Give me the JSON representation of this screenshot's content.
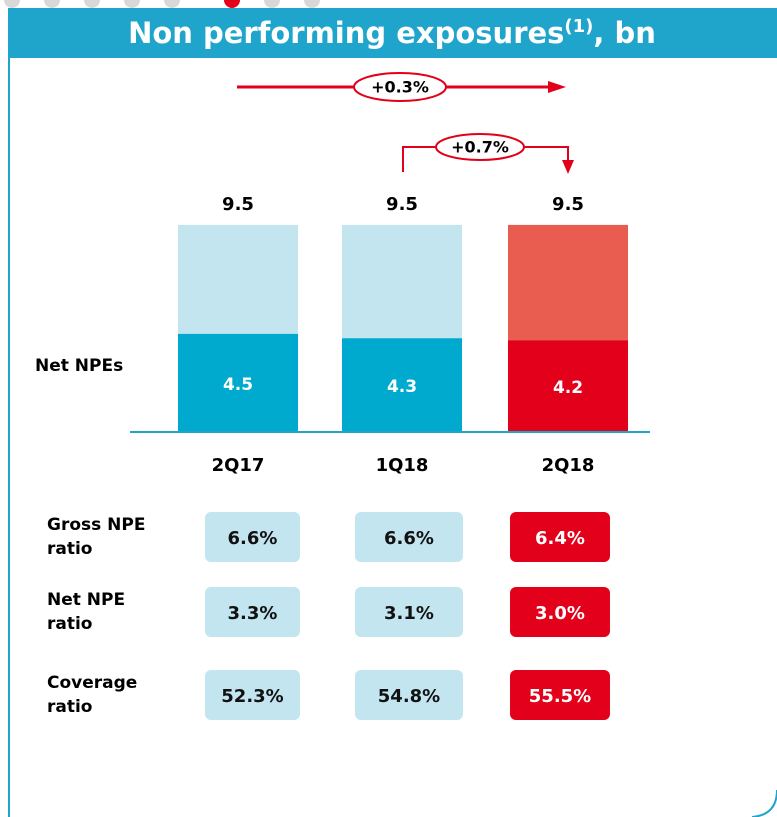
{
  "chart_data": {
    "type": "bar",
    "title": "Non performing exposures",
    "title_note": "(1)",
    "title_suffix": ", bn",
    "categories": [
      "2Q17",
      "1Q18",
      "2Q18"
    ],
    "totals": [
      9.5,
      9.5,
      9.5
    ],
    "total_colors": [
      "#c2e5ef",
      "#c2e5ef",
      "#e85d50"
    ],
    "series": [
      {
        "name": "Net NPEs",
        "values": [
          4.5,
          4.3,
          4.2
        ],
        "colors": [
          "#00a9ce",
          "#00a9ce",
          "#e2001a"
        ]
      }
    ],
    "annotations": [
      "+0.3%",
      "+0.7%"
    ],
    "table": {
      "rows": [
        {
          "label": "Gross NPE ratio",
          "cells": [
            "6.6%",
            "6.6%",
            "6.4%"
          ]
        },
        {
          "label": "Net NPE ratio",
          "cells": [
            "3.3%",
            "3.1%",
            "3.0%"
          ]
        },
        {
          "label": "Coverage ratio",
          "cells": [
            "52.3%",
            "54.8%",
            "55.5%"
          ]
        }
      ]
    }
  }
}
